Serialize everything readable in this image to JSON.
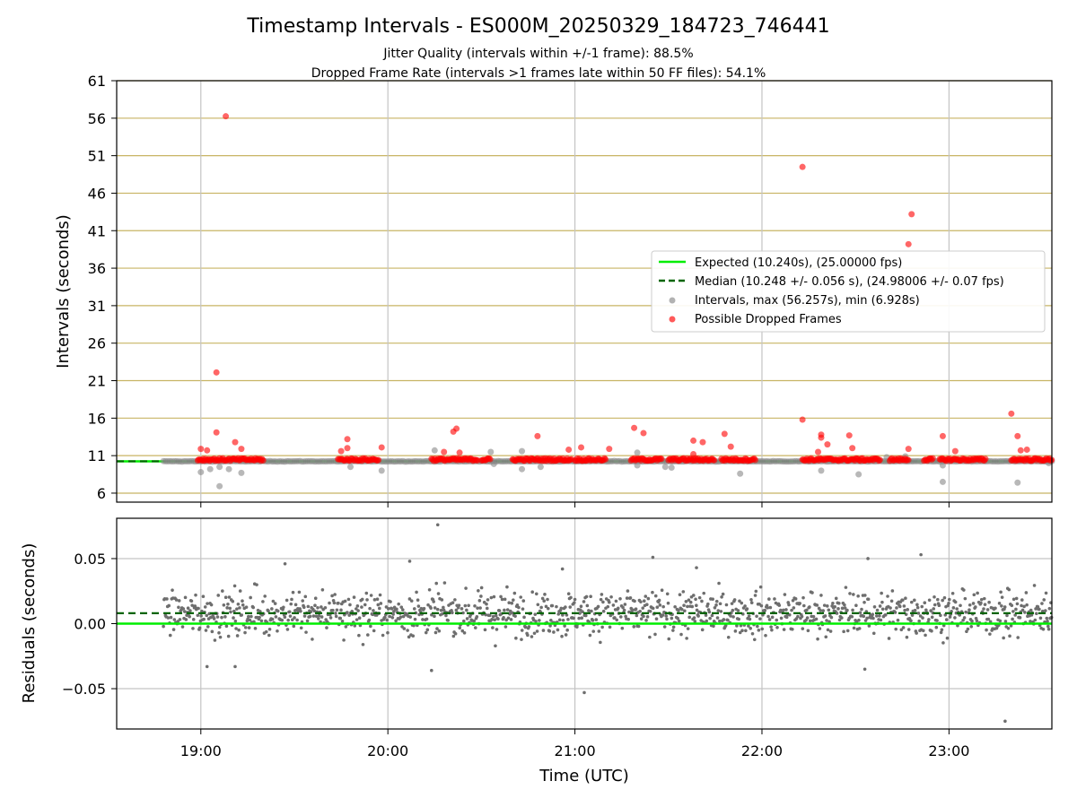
{
  "colors": {
    "expected": "#00ee00",
    "median": "#006400",
    "intervals": "#888888",
    "dropped": "#ff0000",
    "hgrid": "#c8b464",
    "vgrid": "#c4c4c4",
    "residual": "#6e6e6e"
  },
  "chart_data": [
    {
      "type": "scatter",
      "title": "Timestamp Intervals - ES000M_20250329_184723_746441",
      "subtitle_lines": [
        "Jitter Quality (intervals within +/-1 frame): 88.5%",
        "Dropped Frame Rate (intervals >1 frames late within 50 FF files): 54.1%"
      ],
      "xlabel": "",
      "ylabel": "Intervals (seconds)",
      "xlim": [
        "18:33",
        "23:33"
      ],
      "ylim": [
        4.8,
        61
      ],
      "yticks": [
        "6",
        "11",
        "16",
        "21",
        "26",
        "31",
        "36",
        "41",
        "46",
        "51",
        "56",
        "61"
      ],
      "xticks": [
        "19:00",
        "20:00",
        "21:00",
        "22:00",
        "23:00"
      ],
      "grid": true,
      "legend_position": "center-right",
      "expected_interval": 10.24,
      "median_interval": 10.248,
      "legend": [
        "Expected (10.240s), (25.00000 fps)",
        "Median (10.248 +/- 0.056 s), (24.98006 +/- 0.07 fps)",
        "Intervals, max (56.257s), min (6.928s)",
        "Possible Dropped Frames"
      ],
      "dropped_frame_clusters": [
        {
          "x": [
            "18:59",
            "19:20"
          ]
        },
        {
          "x": [
            "19:44",
            "19:57"
          ]
        },
        {
          "x": [
            "20:14",
            "20:29"
          ]
        },
        {
          "x": [
            "20:30",
            "20:33"
          ]
        },
        {
          "x": [
            "20:40",
            "20:59"
          ]
        },
        {
          "x": [
            "21:00",
            "21:10"
          ]
        },
        {
          "x": [
            "21:18",
            "21:28"
          ]
        },
        {
          "x": [
            "21:30",
            "21:45"
          ]
        },
        {
          "x": [
            "21:47",
            "21:58"
          ]
        },
        {
          "x": [
            "22:13",
            "22:38"
          ]
        },
        {
          "x": [
            "22:41",
            "22:47"
          ]
        },
        {
          "x": [
            "22:52",
            "22:55"
          ]
        },
        {
          "x": [
            "22:57",
            "23:12"
          ]
        },
        {
          "x": [
            "23:20",
            "23:33"
          ]
        }
      ],
      "dropped_outliers": [
        {
          "x": "19:08",
          "y": 56.257
        },
        {
          "x": "19:05",
          "y": 22.1
        },
        {
          "x": "19:05",
          "y": 14.1
        },
        {
          "x": "19:11",
          "y": 12.8
        },
        {
          "x": "19:00",
          "y": 11.9
        },
        {
          "x": "19:02",
          "y": 11.7
        },
        {
          "x": "19:13",
          "y": 11.9
        },
        {
          "x": "19:47",
          "y": 13.2
        },
        {
          "x": "19:47",
          "y": 12.0
        },
        {
          "x": "19:45",
          "y": 11.6
        },
        {
          "x": "19:58",
          "y": 12.1
        },
        {
          "x": "20:22",
          "y": 14.6
        },
        {
          "x": "20:21",
          "y": 14.2
        },
        {
          "x": "20:18",
          "y": 11.5
        },
        {
          "x": "20:23",
          "y": 11.4
        },
        {
          "x": "20:48",
          "y": 13.6
        },
        {
          "x": "20:58",
          "y": 11.8
        },
        {
          "x": "21:02",
          "y": 12.1
        },
        {
          "x": "21:11",
          "y": 11.9
        },
        {
          "x": "21:19",
          "y": 14.7
        },
        {
          "x": "21:22",
          "y": 14.0
        },
        {
          "x": "21:38",
          "y": 13.0
        },
        {
          "x": "21:41",
          "y": 12.8
        },
        {
          "x": "21:38",
          "y": 11.2
        },
        {
          "x": "21:48",
          "y": 13.9
        },
        {
          "x": "21:50",
          "y": 12.2
        },
        {
          "x": "22:13",
          "y": 49.5
        },
        {
          "x": "22:13",
          "y": 15.8
        },
        {
          "x": "22:19",
          "y": 13.8
        },
        {
          "x": "22:19",
          "y": 13.4
        },
        {
          "x": "22:21",
          "y": 12.5
        },
        {
          "x": "22:18",
          "y": 11.5
        },
        {
          "x": "22:28",
          "y": 13.7
        },
        {
          "x": "22:29",
          "y": 12.0
        },
        {
          "x": "22:47",
          "y": 39.2
        },
        {
          "x": "22:48",
          "y": 43.2
        },
        {
          "x": "22:47",
          "y": 11.9
        },
        {
          "x": "22:58",
          "y": 13.6
        },
        {
          "x": "23:02",
          "y": 11.6
        },
        {
          "x": "23:20",
          "y": 16.6
        },
        {
          "x": "23:22",
          "y": 13.6
        },
        {
          "x": "23:23",
          "y": 11.7
        },
        {
          "x": "23:25",
          "y": 11.8
        }
      ],
      "interval_outliers": [
        {
          "x": "19:06",
          "y": 6.928
        },
        {
          "x": "19:00",
          "y": 8.8
        },
        {
          "x": "19:03",
          "y": 9.2
        },
        {
          "x": "19:06",
          "y": 9.5
        },
        {
          "x": "19:09",
          "y": 9.2
        },
        {
          "x": "19:13",
          "y": 8.7
        },
        {
          "x": "19:48",
          "y": 9.5
        },
        {
          "x": "19:58",
          "y": 9.0
        },
        {
          "x": "20:15",
          "y": 11.7
        },
        {
          "x": "20:33",
          "y": 11.5
        },
        {
          "x": "20:34",
          "y": 9.9
        },
        {
          "x": "20:43",
          "y": 9.2
        },
        {
          "x": "20:43",
          "y": 11.6
        },
        {
          "x": "20:49",
          "y": 9.5
        },
        {
          "x": "21:20",
          "y": 11.4
        },
        {
          "x": "21:20",
          "y": 9.7
        },
        {
          "x": "21:29",
          "y": 9.5
        },
        {
          "x": "21:31",
          "y": 9.4
        },
        {
          "x": "21:53",
          "y": 8.6
        },
        {
          "x": "22:19",
          "y": 9.0
        },
        {
          "x": "22:31",
          "y": 8.5
        },
        {
          "x": "22:40",
          "y": 10.8
        },
        {
          "x": "22:46",
          "y": 10.9
        },
        {
          "x": "22:58",
          "y": 7.5
        },
        {
          "x": "22:58",
          "y": 9.7
        },
        {
          "x": "23:22",
          "y": 7.4
        },
        {
          "x": "23:32",
          "y": 10.0
        }
      ]
    },
    {
      "type": "scatter",
      "title": "",
      "xlabel": "Time (UTC)",
      "ylabel": "Residuals (seconds)",
      "xlim": [
        "18:33",
        "23:33"
      ],
      "ylim": [
        -0.081,
        0.081
      ],
      "yticks": [
        "−0.05",
        "0.00",
        "0.05"
      ],
      "ytick_values": [
        -0.05,
        0.0,
        0.05
      ],
      "xticks": [
        "19:00",
        "20:00",
        "21:00",
        "22:00",
        "23:00"
      ],
      "grid": true,
      "expected_residual": 0.0,
      "median_residual": 0.008,
      "data_range_x": [
        "18:48",
        "23:33"
      ],
      "typical_spread": 0.012,
      "extreme_points": [
        {
          "x": "20:16",
          "y": 0.076
        },
        {
          "x": "21:03",
          "y": -0.053
        },
        {
          "x": "23:18",
          "y": -0.075
        },
        {
          "x": "21:25",
          "y": 0.051
        },
        {
          "x": "22:51",
          "y": 0.053
        },
        {
          "x": "22:34",
          "y": 0.05
        },
        {
          "x": "19:27",
          "y": 0.046
        },
        {
          "x": "20:07",
          "y": 0.048
        },
        {
          "x": "20:14",
          "y": -0.036
        },
        {
          "x": "19:02",
          "y": -0.033
        },
        {
          "x": "19:11",
          "y": -0.033
        },
        {
          "x": "22:33",
          "y": -0.035
        },
        {
          "x": "20:56",
          "y": 0.042
        },
        {
          "x": "21:39",
          "y": 0.043
        }
      ]
    }
  ]
}
